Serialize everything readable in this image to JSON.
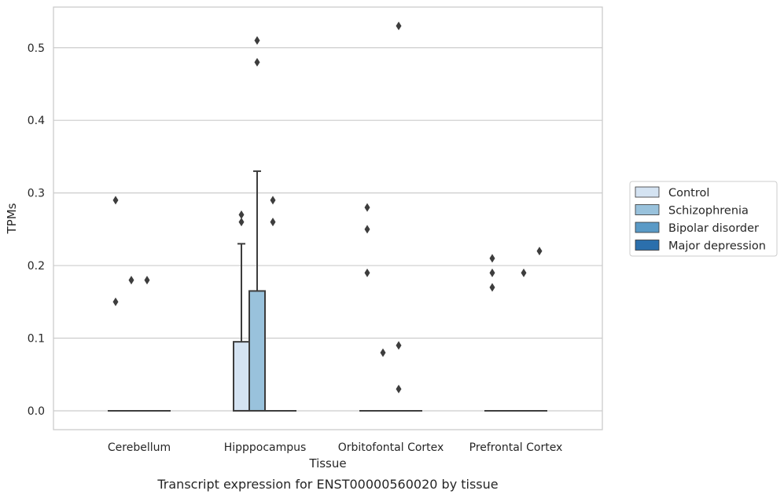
{
  "chart_data": {
    "type": "box",
    "xlabel": "Tissue",
    "ylabel": "TPMs",
    "caption": "Transcript expression for ENST00000560020 by tissue",
    "ylim": [
      -0.026,
      0.556
    ],
    "yticks": [
      "0.0",
      "0.1",
      "0.2",
      "0.3",
      "0.4",
      "0.5"
    ],
    "grid": "horizontal",
    "legend_position": "right",
    "categories": [
      "Cerebellum",
      "Hipppocampus",
      "Orbitofontal Cortex",
      "Prefrontal Cortex"
    ],
    "series": [
      {
        "name": "Control",
        "color": "#d4e3f2",
        "boxes": [
          {
            "q1": 0,
            "median": 0,
            "q3": 0,
            "whisker_low": 0,
            "whisker_high": 0,
            "outliers": [
              0.15,
              0.29
            ]
          },
          {
            "q1": 0,
            "median": 0,
            "q3": 0.095,
            "whisker_low": 0,
            "whisker_high": 0.23,
            "outliers": [
              0.26,
              0.27
            ]
          },
          {
            "q1": 0,
            "median": 0,
            "q3": 0,
            "whisker_low": 0,
            "whisker_high": 0,
            "outliers": [
              0.19,
              0.25,
              0.28
            ]
          },
          {
            "q1": 0,
            "median": 0,
            "q3": 0,
            "whisker_low": 0,
            "whisker_high": 0,
            "outliers": [
              0.17,
              0.19,
              0.21
            ]
          }
        ]
      },
      {
        "name": "Schizophrenia",
        "color": "#99c2dc",
        "boxes": [
          {
            "q1": 0,
            "median": 0,
            "q3": 0,
            "whisker_low": 0,
            "whisker_high": 0,
            "outliers": [
              0.18
            ]
          },
          {
            "q1": 0,
            "median": 0,
            "q3": 0.165,
            "whisker_low": 0,
            "whisker_high": 0.33,
            "outliers": [
              0.48,
              0.51
            ]
          },
          {
            "q1": 0,
            "median": 0,
            "q3": 0,
            "whisker_low": 0,
            "whisker_high": 0,
            "outliers": [
              0.08
            ]
          },
          {
            "q1": 0,
            "median": 0,
            "q3": 0,
            "whisker_low": 0,
            "whisker_high": 0,
            "outliers": []
          }
        ]
      },
      {
        "name": "Bipolar disorder",
        "color": "#5a9ac6",
        "boxes": [
          {
            "q1": 0,
            "median": 0,
            "q3": 0,
            "whisker_low": 0,
            "whisker_high": 0,
            "outliers": [
              0.18
            ]
          },
          {
            "q1": 0,
            "median": 0,
            "q3": 0,
            "whisker_low": 0,
            "whisker_high": 0,
            "outliers": [
              0.26,
              0.29
            ]
          },
          {
            "q1": 0,
            "median": 0,
            "q3": 0,
            "whisker_low": 0,
            "whisker_high": 0,
            "outliers": [
              0.03,
              0.09,
              0.53
            ]
          },
          {
            "q1": 0,
            "median": 0,
            "q3": 0,
            "whisker_low": 0,
            "whisker_high": 0,
            "outliers": [
              0.19
            ]
          }
        ]
      },
      {
        "name": "Major depression",
        "color": "#2b6fac",
        "boxes": [
          {
            "q1": 0,
            "median": 0,
            "q3": 0,
            "whisker_low": 0,
            "whisker_high": 0,
            "outliers": []
          },
          {
            "q1": 0,
            "median": 0,
            "q3": 0,
            "whisker_low": 0,
            "whisker_high": 0,
            "outliers": []
          },
          {
            "q1": 0,
            "median": 0,
            "q3": 0,
            "whisker_low": 0,
            "whisker_high": 0,
            "outliers": []
          },
          {
            "q1": 0,
            "median": 0,
            "q3": 0,
            "whisker_low": 0,
            "whisker_high": 0,
            "outliers": [
              0.22
            ]
          }
        ]
      }
    ]
  },
  "colors": {
    "grid": "#cccccc",
    "frame": "#cccccc",
    "box_edge": "#3d3d3d",
    "outlier": "#3d3d3d",
    "legend_border": "#cccccc"
  }
}
